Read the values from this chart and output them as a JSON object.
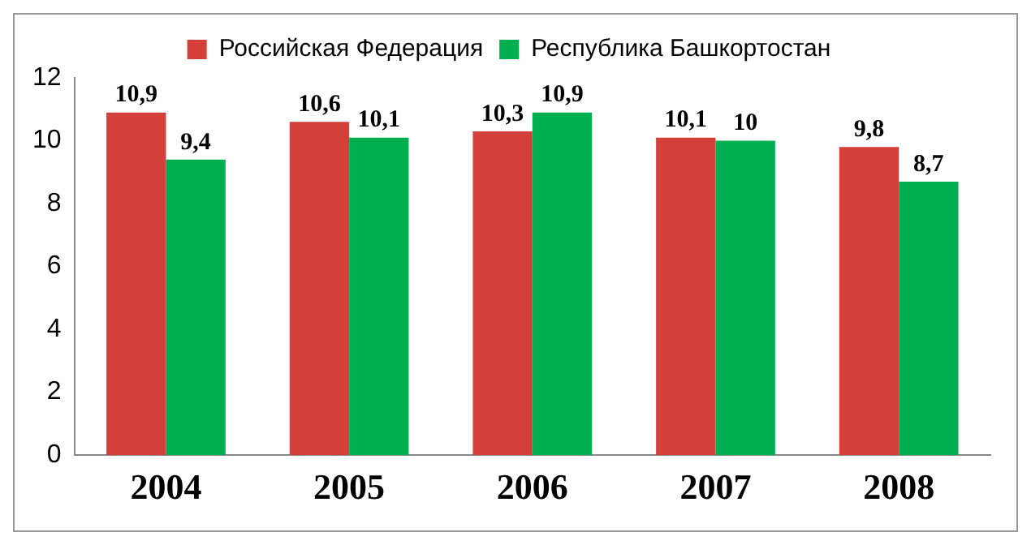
{
  "chart_data": {
    "type": "bar",
    "categories": [
      "2004",
      "2005",
      "2006",
      "2007",
      "2008"
    ],
    "series": [
      {
        "name": "Российская Федерация",
        "color": "#d43f3a",
        "values": [
          10.9,
          10.6,
          10.3,
          10.1,
          9.8
        ],
        "value_labels": [
          "10,9",
          "10,6",
          "10,3",
          "10,1",
          "9,8"
        ]
      },
      {
        "name": "Республика Башкортостан",
        "color": "#00b050",
        "values": [
          9.4,
          10.1,
          10.9,
          10,
          8.7
        ],
        "value_labels": [
          "9,4",
          "10,1",
          "10,9",
          "10",
          "8,7"
        ]
      }
    ],
    "ylim": [
      0,
      12
    ],
    "yticks": [
      0,
      2,
      4,
      6,
      8,
      10,
      12
    ],
    "grid": false,
    "legend": "top"
  }
}
